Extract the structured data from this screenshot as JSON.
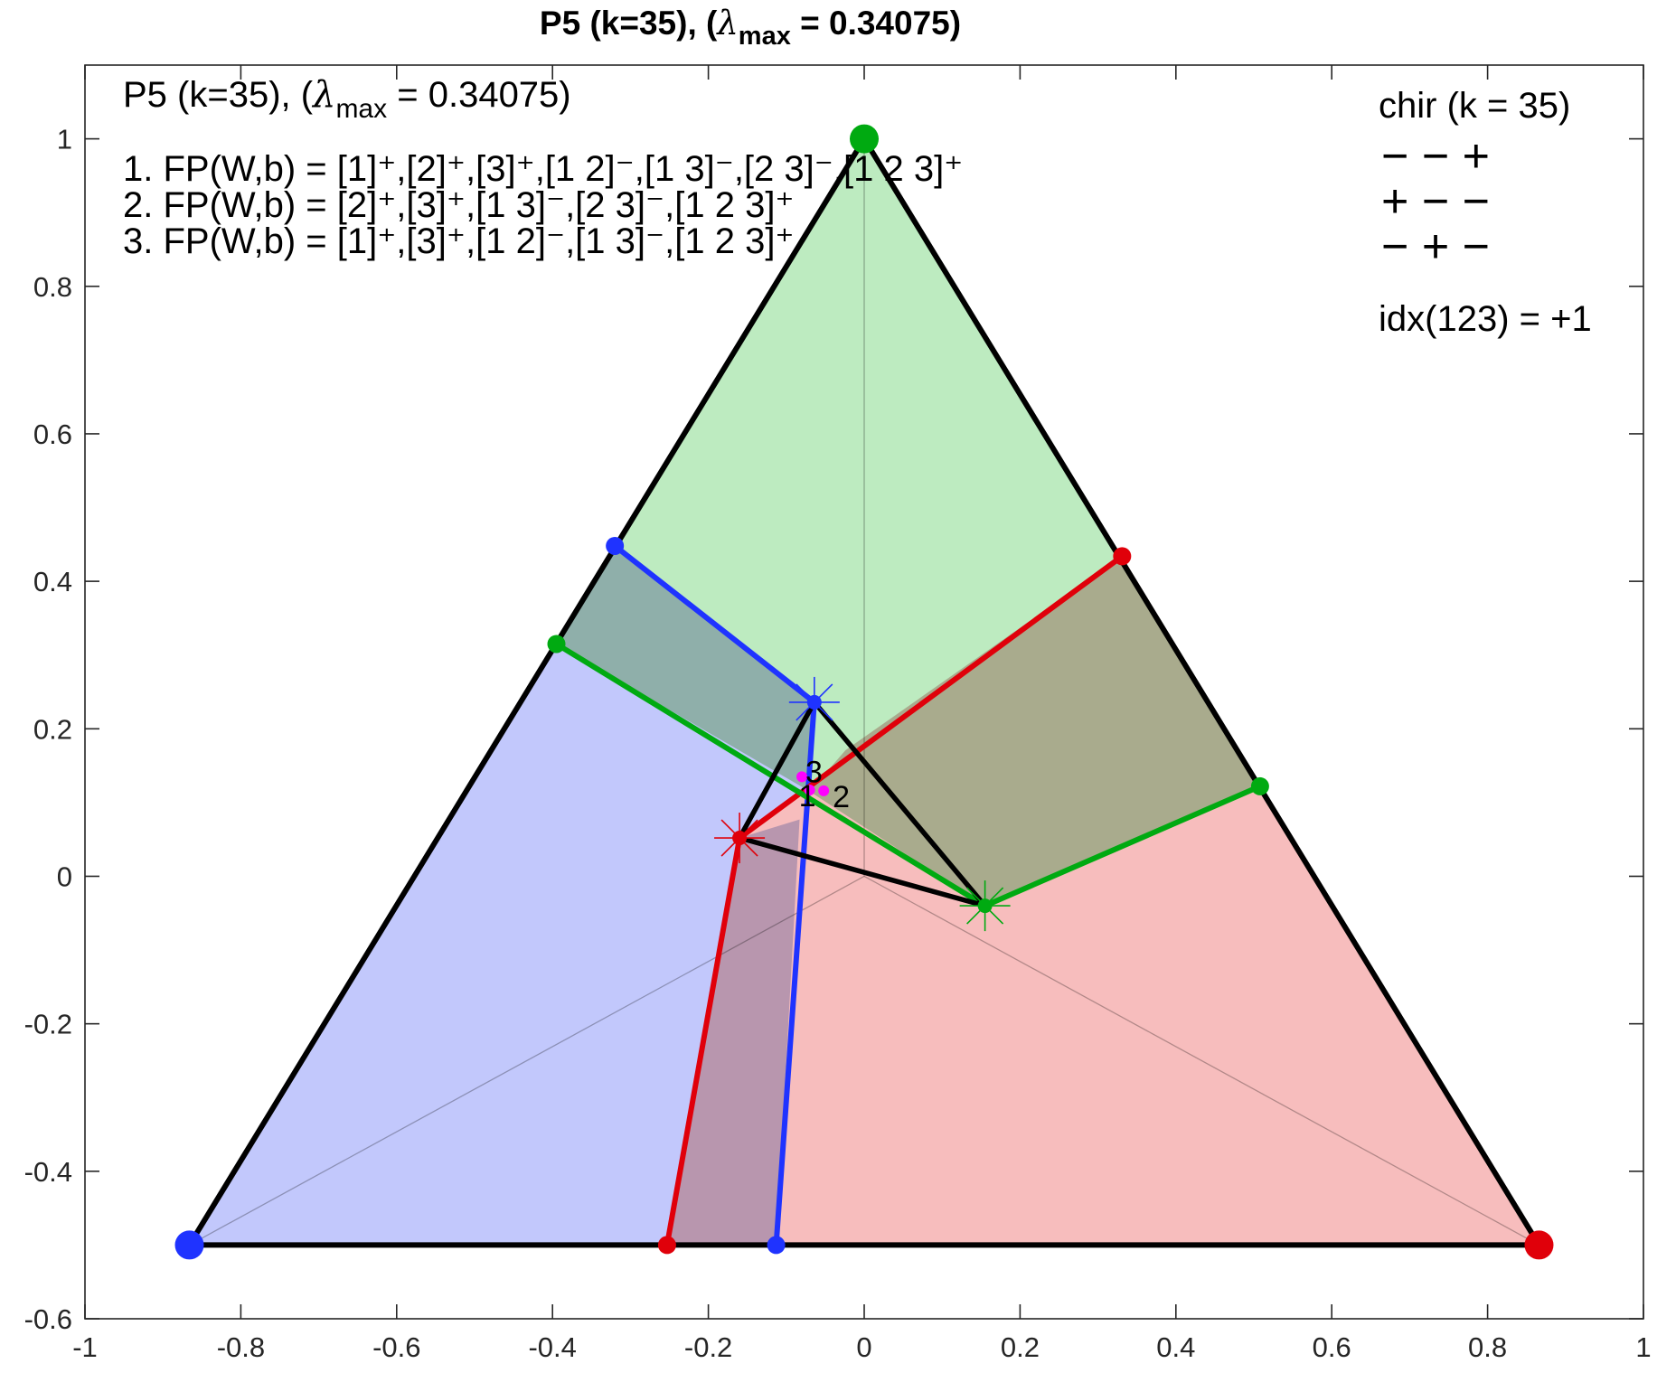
{
  "title": "P5 (k=35),  (λmax = 0.34075)",
  "title_parts": {
    "prefix": "P5 (k=35),  (",
    "lambda": "λ",
    "sub": "max",
    "suffix": " = 0.34075)"
  },
  "annotations": {
    "header_parts": {
      "prefix": "P5 (k=35),  (",
      "lambda": "λ",
      "sub": "max",
      "suffix": " = 0.34075)"
    },
    "fp_lines": [
      "1. FP(W,b) = [1]⁺,[2]⁺,[3]⁺,[1  2]⁻,[1  3]⁻,[2  3]⁻,[1  2  3]⁺",
      "2. FP(W,b) = [2]⁺,[3]⁺,[1  3]⁻,[2  3]⁻,[1  2  3]⁺",
      "3. FP(W,b) = [1]⁺,[3]⁺,[1  2]⁻,[1  3]⁻,[1  2  3]⁺"
    ],
    "chir_title": "chir (k = 35)",
    "chir_rows": [
      "−  −  +",
      "+  −  −",
      "−  +  −"
    ],
    "idx": "idx(123) = +1",
    "point_labels": [
      "3",
      "1",
      "2"
    ]
  },
  "colors": {
    "green_fill": "#bdebc0",
    "blue_fill": "#c2c8fc",
    "red_fill": "#f7bdbd",
    "blue_green": "#8fafaa",
    "red_green": "#a9ab8d",
    "red_blue": "#b896ae",
    "red_line": "#e0000a",
    "blue_line": "#1f33ff",
    "green_line": "#00aa11",
    "magenta": "#ff00ff",
    "black": "#000000"
  },
  "chart_data": {
    "type": "scatter",
    "title": "P5 (k=35),  (λmax = 0.34075)",
    "xlim": [
      -1,
      1
    ],
    "ylim": [
      -0.6,
      1.1
    ],
    "xticks": [
      -1,
      -0.8,
      -0.6,
      -0.4,
      -0.2,
      0,
      0.2,
      0.4,
      0.6,
      0.8,
      1
    ],
    "yticks": [
      -0.6,
      -0.4,
      -0.2,
      0,
      0.2,
      0.4,
      0.6,
      0.8,
      1
    ],
    "xtick_labels": [
      "-1",
      "-0.8",
      "-0.6",
      "-0.4",
      "-0.2",
      "0",
      "0.2",
      "0.4",
      "0.6",
      "0.8",
      "1"
    ],
    "ytick_labels": [
      "-0.6",
      "-0.4",
      "-0.2",
      "0",
      "0.2",
      "0.4",
      "0.6",
      "0.8",
      "1"
    ],
    "triangle_vertices": {
      "green": [
        0,
        1
      ],
      "blue": [
        -0.866,
        -0.5
      ],
      "red": [
        0.866,
        -0.5
      ]
    },
    "regions": [
      {
        "name": "green",
        "color": "green_fill",
        "points": [
          [
            0,
            1
          ],
          [
            -0.395,
            0.315
          ],
          [
            0.155,
            -0.04
          ],
          [
            0.508,
            0.122
          ]
        ]
      },
      {
        "name": "blue",
        "color": "blue_fill",
        "points": [
          [
            -0.866,
            -0.5
          ],
          [
            -0.113,
            -0.5
          ],
          [
            -0.064,
            0.236
          ],
          [
            -0.32,
            0.448
          ]
        ]
      },
      {
        "name": "red",
        "color": "red_fill",
        "points": [
          [
            0.866,
            -0.5
          ],
          [
            0.331,
            0.434
          ],
          [
            -0.16,
            0.052
          ],
          [
            -0.253,
            -0.5
          ]
        ]
      },
      {
        "name": "blue-green overlap",
        "color": "blue_green",
        "points": [
          [
            -0.32,
            0.448
          ],
          [
            -0.064,
            0.236
          ],
          [
            -0.07,
            0.115
          ],
          [
            -0.395,
            0.315
          ]
        ]
      },
      {
        "name": "red-green overlap",
        "color": "red_green",
        "points": [
          [
            0.331,
            0.434
          ],
          [
            0.508,
            0.122
          ],
          [
            0.155,
            -0.04
          ],
          [
            -0.07,
            0.115
          ],
          [
            -0.024,
            0.171
          ]
        ]
      },
      {
        "name": "red-blue overlap",
        "color": "red_blue",
        "points": [
          [
            -0.253,
            -0.5
          ],
          [
            -0.113,
            -0.5
          ],
          [
            -0.083,
            0.077
          ],
          [
            -0.16,
            0.052
          ]
        ]
      }
    ],
    "boundary_lines": [
      {
        "color": "blue_line",
        "points": [
          [
            -0.32,
            0.448
          ],
          [
            -0.064,
            0.236
          ],
          [
            -0.113,
            -0.5
          ]
        ]
      },
      {
        "color": "red_line",
        "points": [
          [
            0.331,
            0.434
          ],
          [
            -0.16,
            0.052
          ],
          [
            -0.253,
            -0.5
          ]
        ]
      },
      {
        "color": "green_line",
        "points": [
          [
            -0.395,
            0.315
          ],
          [
            0.155,
            -0.04
          ],
          [
            0.508,
            0.122
          ]
        ]
      }
    ],
    "inner_triangle": [
      [
        -0.064,
        0.236
      ],
      [
        -0.16,
        0.052
      ],
      [
        0.155,
        -0.04
      ]
    ],
    "stars": [
      {
        "color": "blue_line",
        "point": [
          -0.064,
          0.236
        ]
      },
      {
        "color": "red_line",
        "point": [
          -0.16,
          0.052
        ]
      },
      {
        "color": "green_line",
        "point": [
          0.155,
          -0.04
        ]
      }
    ],
    "fixed_points": [
      {
        "label": "3",
        "point": [
          -0.08,
          0.135
        ]
      },
      {
        "label": "1",
        "point": [
          -0.07,
          0.117
        ]
      },
      {
        "label": "2",
        "point": [
          -0.052,
          0.116
        ]
      }
    ]
  }
}
